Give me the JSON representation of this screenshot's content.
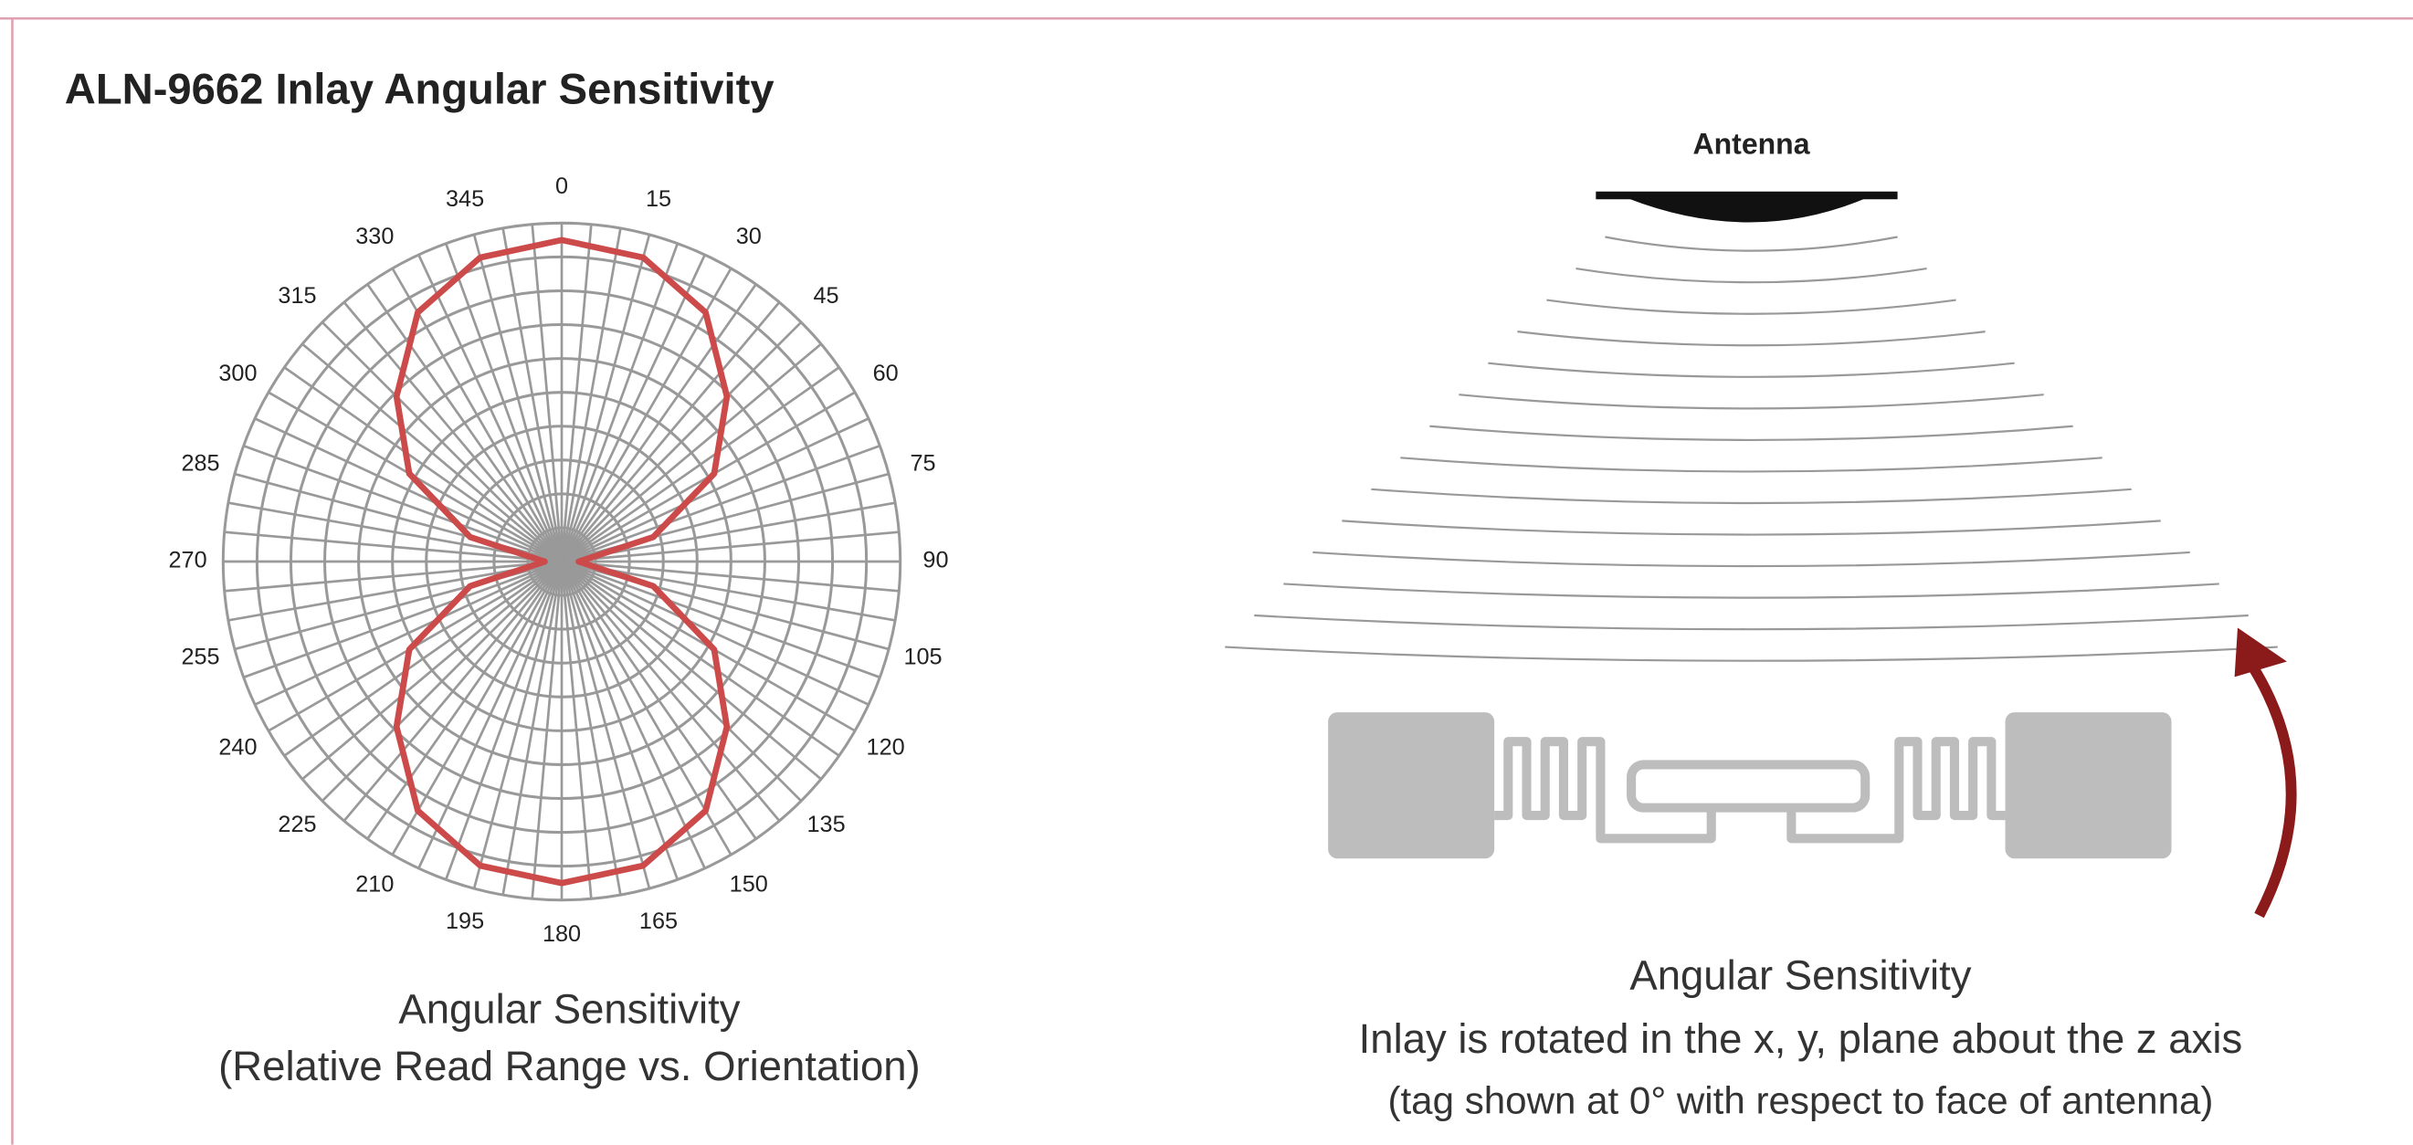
{
  "title": "ALN-9662 Inlay Angular Sensitivity",
  "chart_data": {
    "type": "polar",
    "theta": [
      0,
      15,
      30,
      45,
      60,
      75,
      90,
      105,
      120,
      135,
      150,
      165,
      180,
      195,
      210,
      225,
      240,
      255,
      270,
      285,
      300,
      315,
      330,
      345
    ],
    "values": [
      0.95,
      0.93,
      0.85,
      0.69,
      0.52,
      0.28,
      0.05,
      0.28,
      0.52,
      0.69,
      0.85,
      0.93,
      0.95,
      0.93,
      0.85,
      0.69,
      0.52,
      0.28,
      0.05,
      0.28,
      0.52,
      0.69,
      0.85,
      0.93
    ],
    "color": "#cc4a4a",
    "rlim": [
      0,
      1
    ],
    "rticks": [
      0.1,
      0.2,
      0.3,
      0.4,
      0.5,
      0.6,
      0.7,
      0.8,
      0.9,
      1
    ],
    "grid": true,
    "caption": [
      "Angular Sensitivity",
      "(Relative Read Range vs. Orientation)"
    ]
  },
  "diagram": {
    "antenna_label": "Antenna",
    "caption": [
      "Angular Sensitivity",
      "Inlay is rotated in the x, y, plane about the z axis",
      "(tag shown at 0° with respect to face of antenna)"
    ]
  }
}
